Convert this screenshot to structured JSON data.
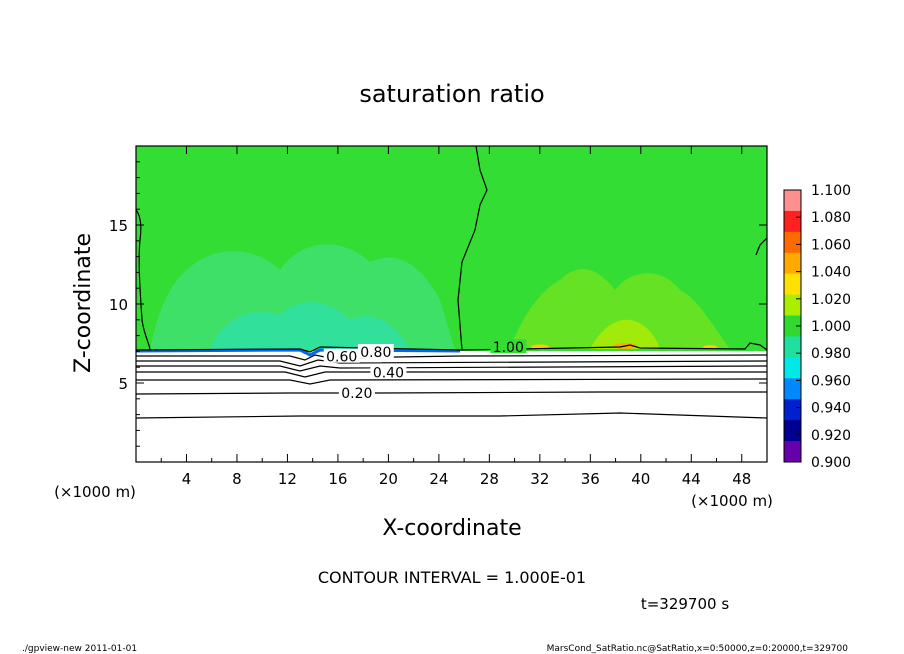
{
  "chart_data": {
    "type": "heatmap",
    "title": "saturation ratio",
    "xlabel": "X-coordinate",
    "ylabel": "Z-coordinate",
    "x_unit": "(×1000 m)",
    "z_unit": "(×1000 m)",
    "xlim": [
      0,
      50
    ],
    "ylim": [
      0,
      20
    ],
    "x_ticks": [
      4,
      8,
      12,
      16,
      20,
      24,
      28,
      32,
      36,
      40,
      44,
      48
    ],
    "y_ticks": [
      5,
      10,
      15
    ],
    "contour_labels": [
      {
        "text": "1.00",
        "x": 29.5,
        "y": 7.2
      },
      {
        "text": "0.80",
        "x": 19.0,
        "y": 6.9
      },
      {
        "text": "0.60",
        "x": 16.3,
        "y": 6.6
      },
      {
        "text": "0.40",
        "x": 20.0,
        "y": 5.6
      },
      {
        "text": "0.20",
        "x": 17.5,
        "y": 4.3
      }
    ],
    "contour_interval": "CONTOUR INTERVAL = 1.000E-01",
    "time_label": "t=329700 s",
    "colorbar": {
      "levels": [
        "1.100",
        "1.080",
        "1.060",
        "1.040",
        "1.020",
        "1.000",
        "0.980",
        "0.960",
        "0.940",
        "0.920",
        "0.900"
      ],
      "colors": [
        "#ff9090",
        "#ff2020",
        "#ff6a00",
        "#ffaa00",
        "#ffe000",
        "#aaee00",
        "#30d830",
        "#20e0a0",
        "#00e8e8",
        "#0088ff",
        "#0020d0",
        "#000090",
        "#6600aa"
      ]
    },
    "colors": {
      "green_field": "#33dd33",
      "saturated_band": "#22dd88",
      "contour": "#000000"
    }
  },
  "footer": {
    "left": "./gpview-new  2011-01-01",
    "right": "MarsCond_SatRatio.nc@SatRatio,x=0:50000,z=0:20000,t=329700"
  }
}
